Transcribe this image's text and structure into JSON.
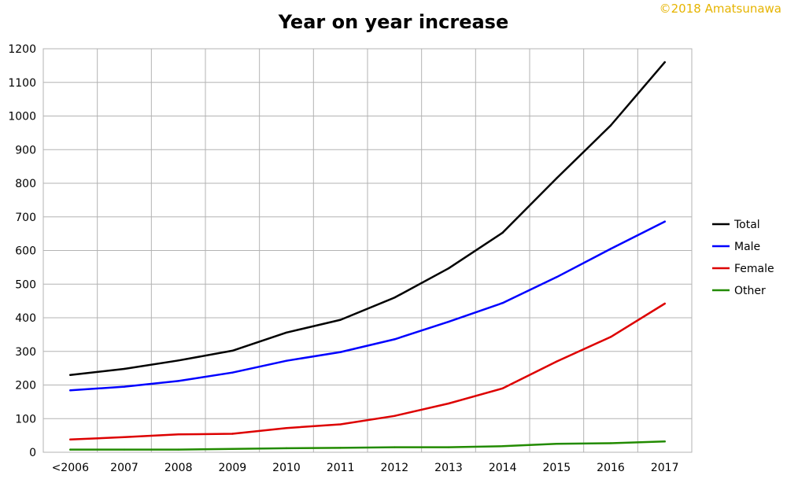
{
  "copyright": "©2018 Amatsunawa",
  "chart_data": {
    "type": "line",
    "title": "Year on year increase",
    "xlabel": "",
    "ylabel": "",
    "categories": [
      "<2006",
      "2007",
      "2008",
      "2009",
      "2010",
      "2011",
      "2012",
      "2013",
      "2014",
      "2015",
      "2016",
      "2017"
    ],
    "ylim": [
      0,
      1200
    ],
    "yticks": [
      0,
      100,
      200,
      300,
      400,
      500,
      600,
      700,
      800,
      900,
      1000,
      1100,
      1200
    ],
    "grid": true,
    "legend_position": "right",
    "series": [
      {
        "name": "Total",
        "color": "#000000",
        "values": [
          230,
          248,
          273,
          302,
          356,
          394,
          460,
          547,
          653,
          815,
          972,
          1160
        ]
      },
      {
        "name": "Male",
        "color": "#0000ff",
        "values": [
          184,
          195,
          212,
          237,
          272,
          298,
          336,
          388,
          444,
          521,
          605,
          686
        ]
      },
      {
        "name": "Female",
        "color": "#dd0000",
        "values": [
          38,
          45,
          53,
          55,
          72,
          83,
          108,
          145,
          190,
          270,
          343,
          442
        ]
      },
      {
        "name": "Other",
        "color": "#228b00",
        "values": [
          8,
          8,
          8,
          10,
          12,
          13,
          15,
          15,
          18,
          25,
          27,
          32
        ]
      }
    ]
  }
}
